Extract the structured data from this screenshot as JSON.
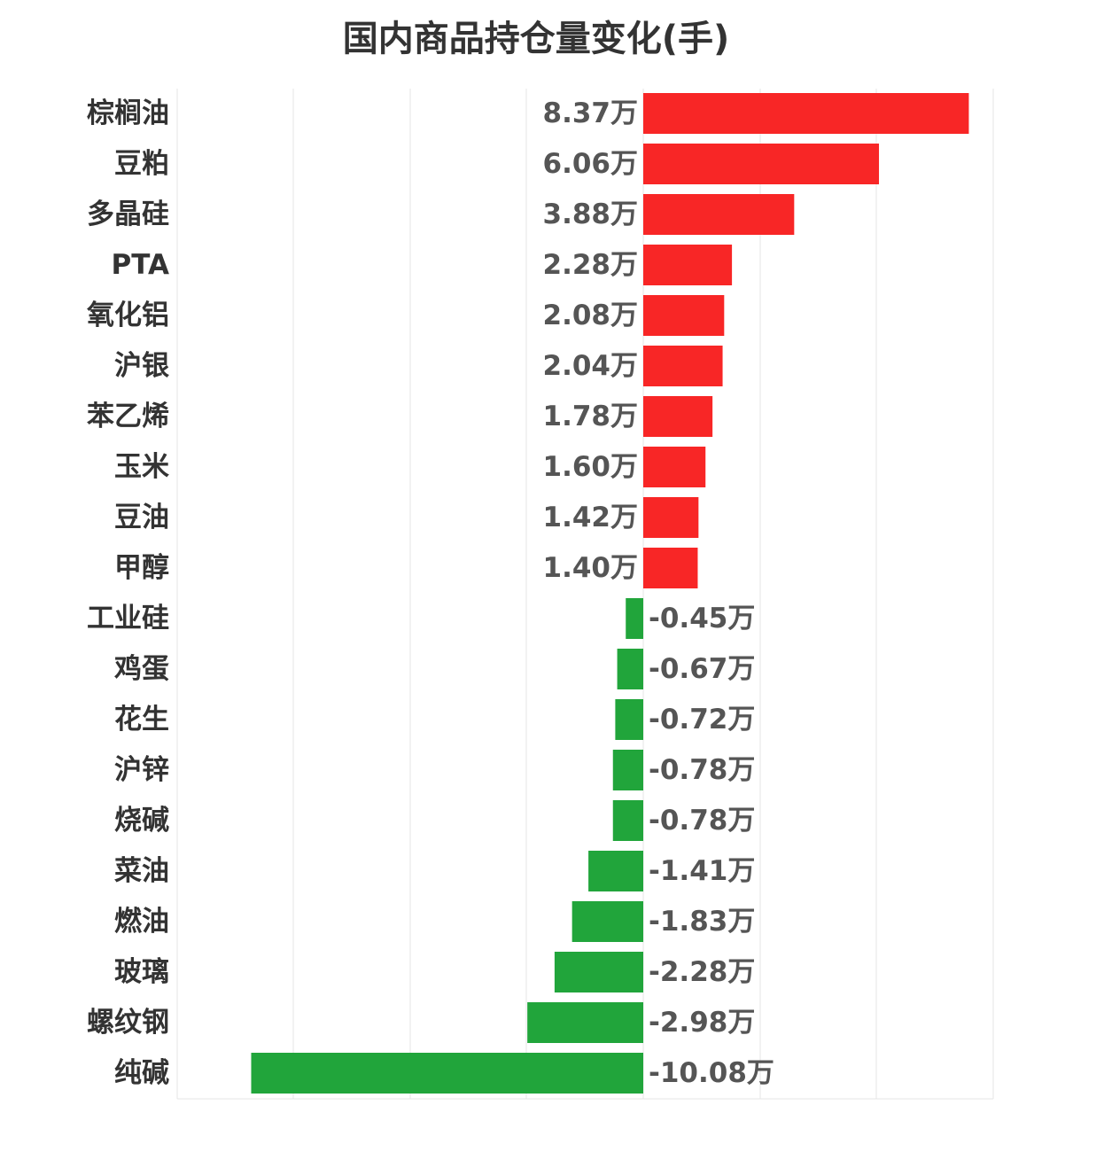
{
  "chart_data": {
    "type": "bar",
    "orientation": "horizontal",
    "title": "国内商品持仓量变化(手)",
    "xlabel": "",
    "ylabel": "",
    "xlim": [
      -16.5,
      15
    ],
    "grid": true,
    "legend": "none",
    "categories": [
      "棕榈油",
      "豆粕",
      "多晶硅",
      "PTA",
      "氧化铝",
      "沪银",
      "苯乙烯",
      "玉米",
      "豆油",
      "甲醇",
      "工业硅",
      "鸡蛋",
      "花生",
      "沪锌",
      "烧碱",
      "菜油",
      "燃油",
      "玻璃",
      "螺纹钢",
      "纯碱"
    ],
    "values": [
      8.37,
      6.06,
      3.88,
      2.28,
      2.08,
      2.04,
      1.78,
      1.6,
      1.42,
      1.4,
      -0.45,
      -0.67,
      -0.72,
      -0.78,
      -0.78,
      -1.41,
      -1.83,
      -2.28,
      -2.98,
      -10.08
    ],
    "value_labels": [
      "8.37万",
      "6.06万",
      "3.88万",
      "2.28万",
      "2.08万",
      "2.04万",
      "1.78万",
      "1.60万",
      "1.42万",
      "1.40万",
      "-0.45万",
      "-0.67万",
      "-0.72万",
      "-0.78万",
      "-0.78万",
      "-1.41万",
      "-1.83万",
      "-2.28万",
      "-2.98万",
      "-10.08万"
    ],
    "unit": "万",
    "colors": {
      "positive": "#f82626",
      "negative": "#21a53b",
      "grid": "#e6e6e6"
    }
  }
}
